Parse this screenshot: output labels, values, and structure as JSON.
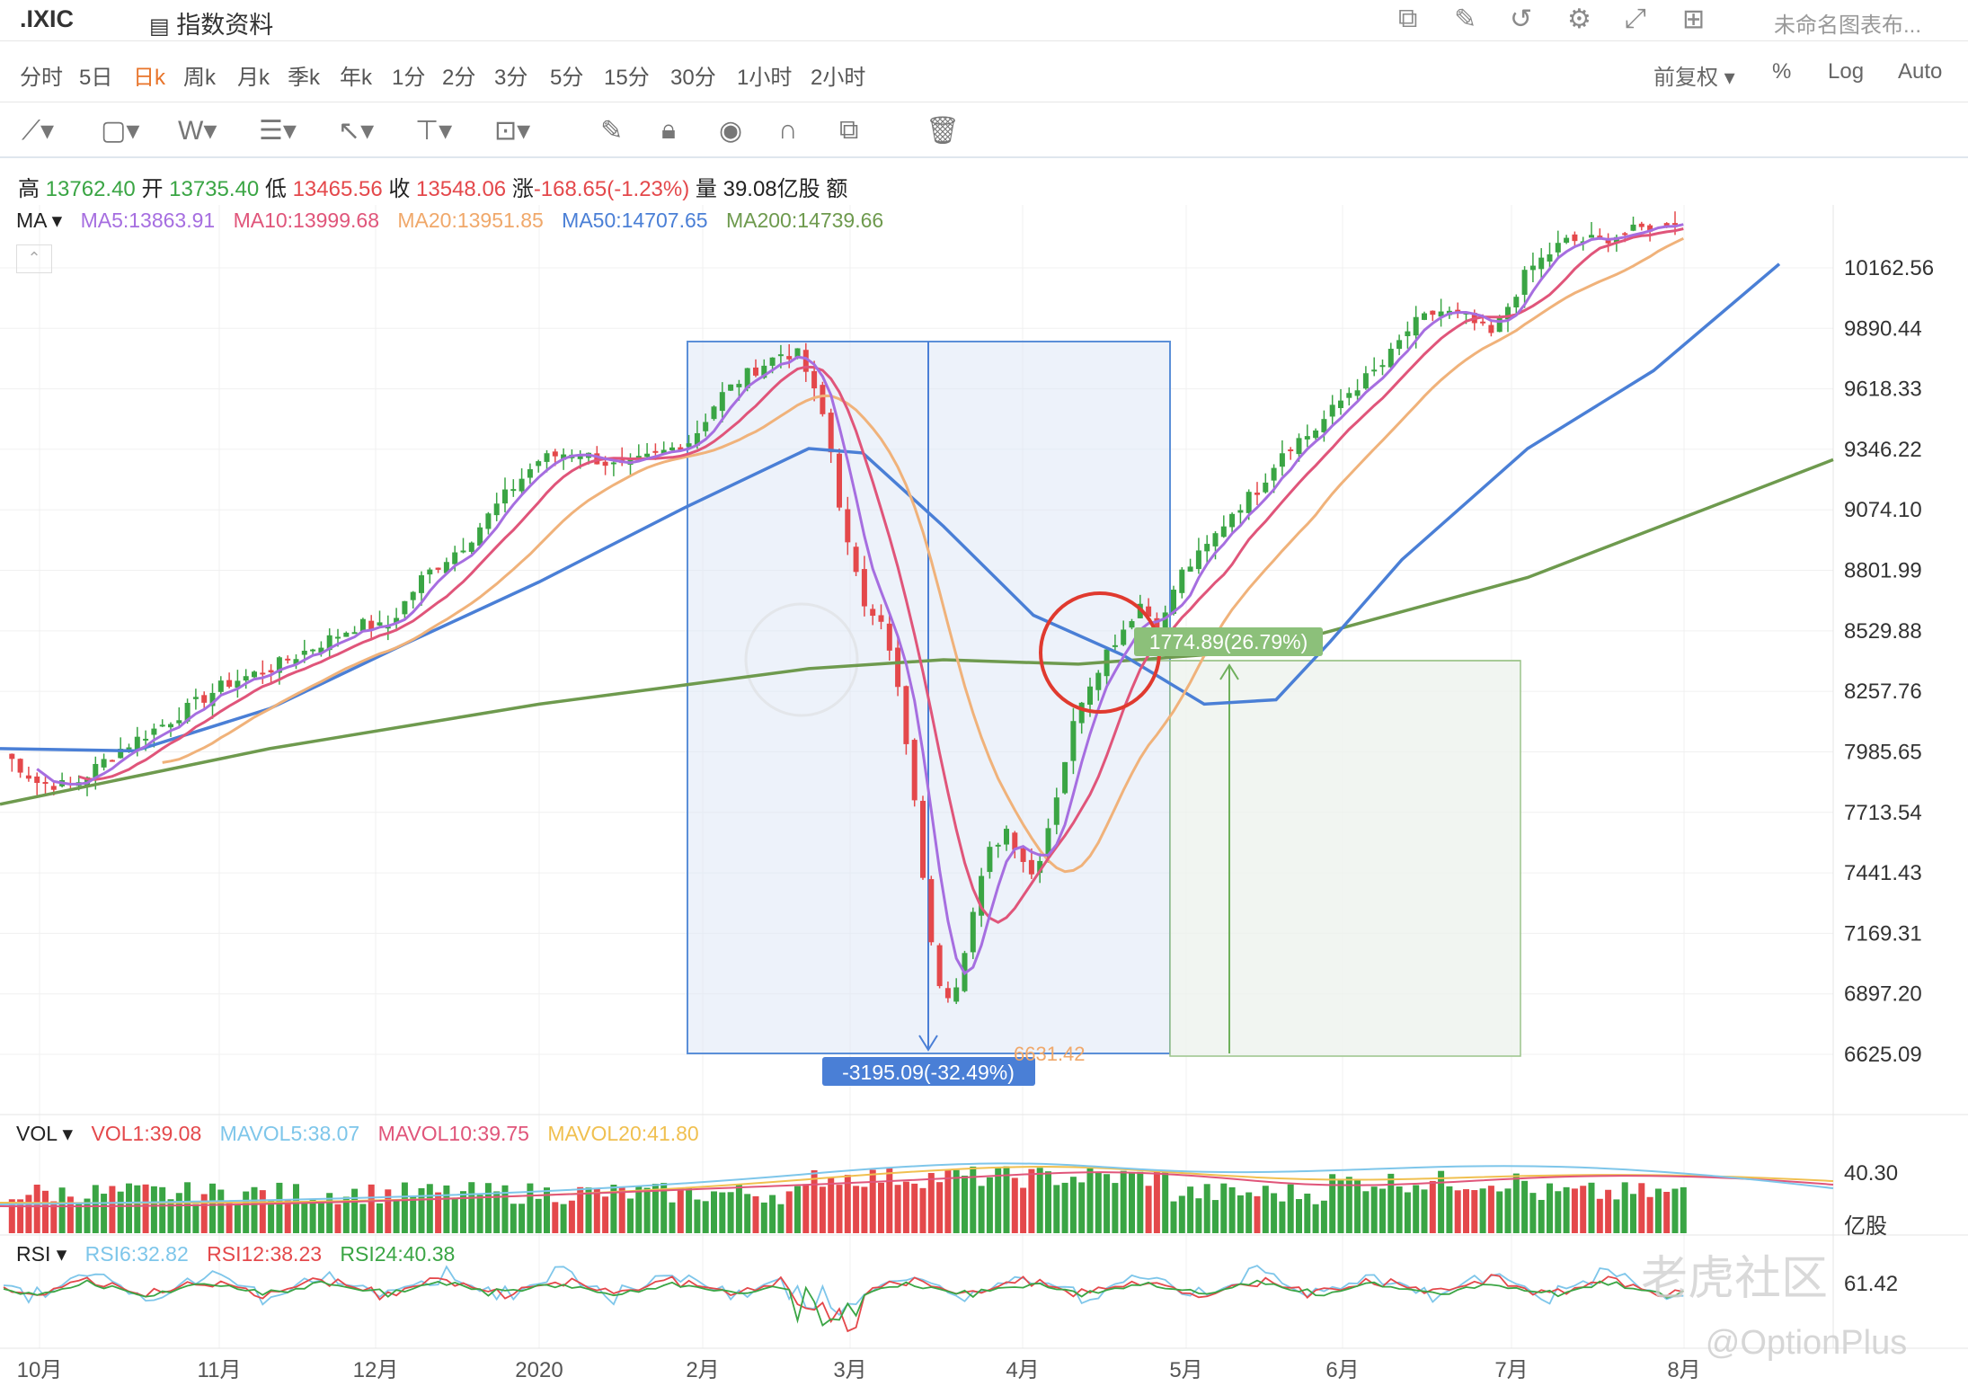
{
  "header": {
    "symbol": ".IXIC",
    "info_tab": "指数资料",
    "chart_name": "未命名图表布..."
  },
  "periods": [
    "分时",
    "5日",
    "日k",
    "周k",
    "月k",
    "季k",
    "年k",
    "1分",
    "2分",
    "3分",
    "5分",
    "15分",
    "30分",
    "1小时",
    "2小时"
  ],
  "active_period": "日k",
  "right_options": {
    "adjust": "前复权 ▾",
    "percent": "%",
    "log": "Log",
    "auto": "Auto"
  },
  "ohlc": {
    "high_label": "高",
    "high": "13762.40",
    "open_label": "开",
    "open": "13735.40",
    "low_label": "低",
    "low": "13465.56",
    "close_label": "收",
    "close": "13548.06",
    "change_label": "涨",
    "change": "-168.65(-1.23%)",
    "volume_label": "量",
    "volume": "39.08亿股",
    "amount_label": "额"
  },
  "ma_legend": {
    "name": "MA ▾",
    "ma5": "MA5:13863.91",
    "ma10": "MA10:13999.68",
    "ma20": "MA20:13951.85",
    "ma50": "MA50:14707.65",
    "ma200": "MA200:14739.66"
  },
  "vol_legend": {
    "name": "VOL ▾",
    "vol1": "VOL1:39.08",
    "mavol5": "MAVOL5:38.07",
    "mavol10": "MAVOL10:39.75",
    "mavol20": "MAVOL20:41.80"
  },
  "rsi_legend": {
    "name": "RSI ▾",
    "rsi6": "RSI6:32.82",
    "rsi12": "RSI12:38.23",
    "rsi24": "RSI24:40.38"
  },
  "colors": {
    "up": "#3aa544",
    "down": "#e4484b",
    "ma5": "#a66ee0",
    "ma10": "#e0557a",
    "ma20": "#f0b27a",
    "ma50": "#4a7fd6",
    "ma200": "#6e9a4e"
  },
  "chart_data": {
    "type": "candlestick",
    "price_ticks": [
      "10162.56",
      "9890.44",
      "9618.33",
      "9346.22",
      "9074.10",
      "8801.99",
      "8529.88",
      "8257.76",
      "7985.65",
      "7713.54",
      "7441.43",
      "7169.31",
      "6897.20",
      "6625.09"
    ],
    "vol_ticks": [
      "40.30",
      "亿股"
    ],
    "rsi_ticks": [
      "61.42"
    ],
    "x_ticks": [
      "10月",
      "11月",
      "12月",
      "2020",
      "2月",
      "3月",
      "4月",
      "5月",
      "6月",
      "7月",
      "8月"
    ],
    "drawdown_label": "-3195.09(-32.49%)",
    "low_marker": "6631.42",
    "rebound_label": "1774.89(26.79%)"
  },
  "watermark": {
    "site": "老虎社区",
    "handle": "@OptionPlus"
  }
}
